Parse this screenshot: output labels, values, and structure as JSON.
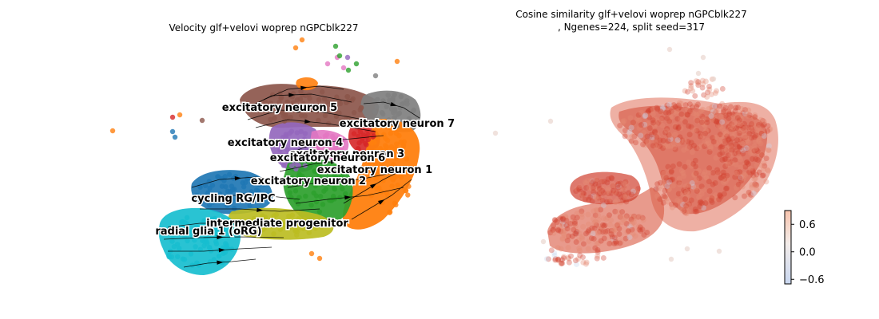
{
  "chart_data": [
    {
      "type": "scatter",
      "title": "Velocity glf+velovi woprep nGPCblk227",
      "grid": false,
      "axes_visible": false,
      "overlay": "velocity streamlines",
      "clusters": [
        {
          "label": "excitatory neuron 5",
          "color": "#8c564b"
        },
        {
          "label": "excitatory neuron 7",
          "color": "#7f7f7f"
        },
        {
          "label": "excitatory neuron 4",
          "color": "#9467bd"
        },
        {
          "label": "excitatory neuron 3",
          "color": "#d62728"
        },
        {
          "label": "excitatory neuron 6",
          "color": "#e377c2"
        },
        {
          "label": "excitatory neuron 1",
          "color": "#ff7f0e"
        },
        {
          "label": "excitatory neuron 2",
          "color": "#2ca02c"
        },
        {
          "label": "cycling RG/IPC",
          "color": "#1f77b4"
        },
        {
          "label": "intermediate progenitor",
          "color": "#bcbd22"
        },
        {
          "label": "radial glia 1 (oRG)",
          "color": "#17becf"
        }
      ]
    },
    {
      "type": "scatter",
      "title": "Cosine similarity glf+velovi woprep nGPCblk227\n, Ngenes=224, split seed=317",
      "title_lines": [
        "Cosine similarity glf+velovi woprep nGPCblk227",
        ", Ngenes=224, split seed=317"
      ],
      "grid": false,
      "axes_visible": false,
      "colorbar": {
        "cmap": "coolwarm",
        "range": [
          -0.7,
          0.9
        ],
        "ticks": [
          0.6,
          0.0,
          -0.6
        ],
        "tick_labels": [
          "0.6",
          "0.0",
          "−0.6"
        ]
      },
      "point_color_low": "#e9d5cf",
      "point_color_high": "#d0402f"
    }
  ]
}
